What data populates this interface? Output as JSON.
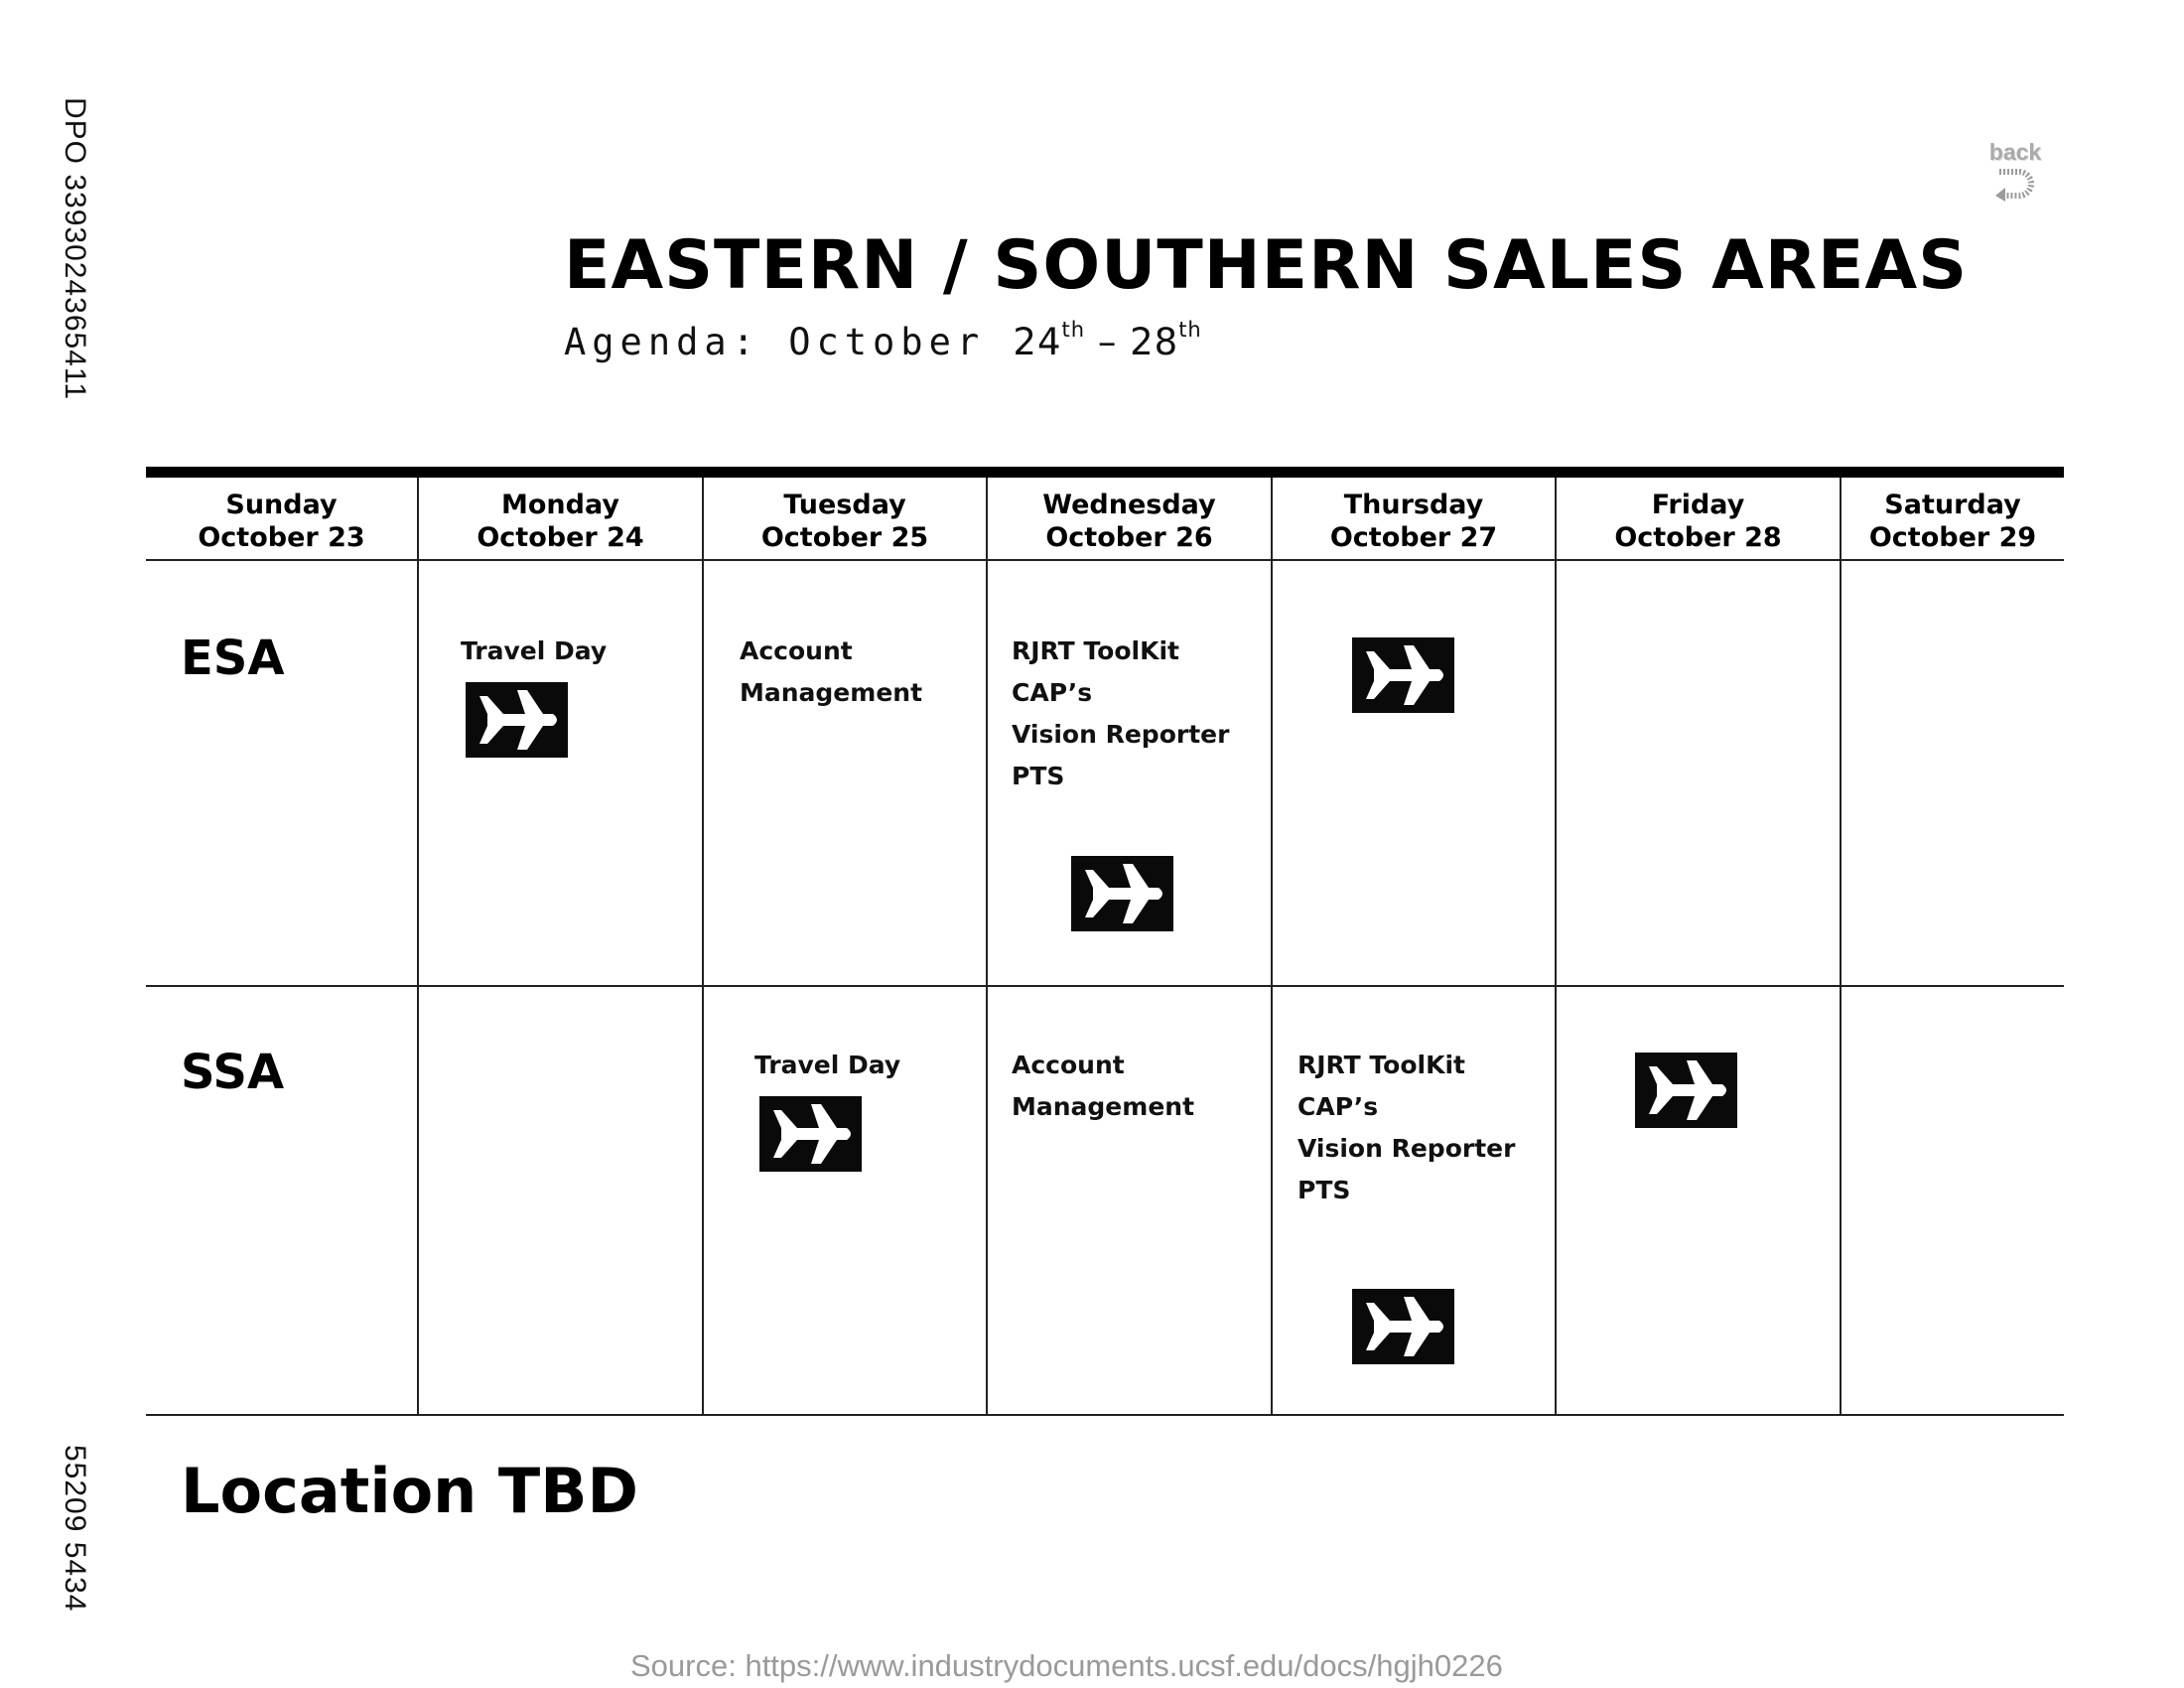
{
  "side_codes": {
    "top": "DPO 3393024365411",
    "bottom": "55209 5434"
  },
  "back_button": {
    "label": "back"
  },
  "header": {
    "title": "EASTERN / SOUTHERN SALES AREAS",
    "agenda_prefix": "Agenda: October ",
    "start_day": "24",
    "start_suffix": "th",
    "separator": " – ",
    "end_day": "28",
    "end_suffix": "th"
  },
  "days": [
    {
      "weekday": "Sunday",
      "date": "October 23"
    },
    {
      "weekday": "Monday",
      "date": "October 24"
    },
    {
      "weekday": "Tuesday",
      "date": "October 25"
    },
    {
      "weekday": "Wednesday",
      "date": "October 26"
    },
    {
      "weekday": "Thursday",
      "date": "October 27"
    },
    {
      "weekday": "Friday",
      "date": "October 28"
    },
    {
      "weekday": "Saturday",
      "date": "October 29"
    }
  ],
  "rows": {
    "esa": {
      "label": "ESA",
      "monday": [
        "Travel Day"
      ],
      "tuesday": [
        "Account",
        "Management"
      ],
      "wednesday": [
        "RJRT ToolKit",
        "CAP’s",
        "Vision Reporter",
        "PTS"
      ]
    },
    "ssa": {
      "label": "SSA",
      "tuesday": [
        "Travel Day"
      ],
      "wednesday": [
        "Account",
        "Management"
      ],
      "thursday": [
        "RJRT ToolKit",
        "CAP’s",
        "Vision Reporter",
        "PTS"
      ]
    }
  },
  "icons": {
    "travel": "airplane-icon",
    "back": "return-arrow-icon"
  },
  "footer": {
    "location": "Location TBD",
    "source": "Source: https://www.industrydocuments.ucsf.edu/docs/hgjh0226"
  }
}
